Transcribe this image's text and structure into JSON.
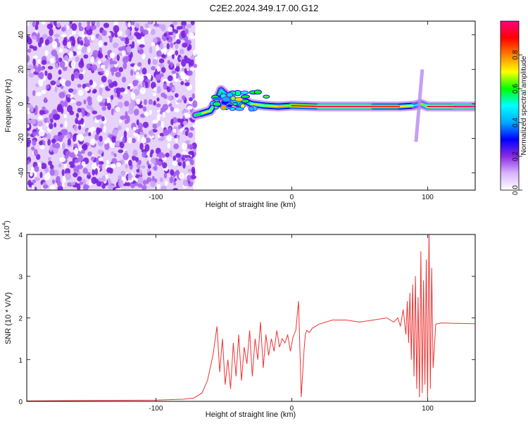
{
  "title": "C2E2.2024.349.17.00.G12",
  "chart_data": [
    {
      "type": "heatmap",
      "xlabel": "Height of straight line (km)",
      "ylabel": "Frequency (Hz)",
      "xlim": [
        -195,
        135
      ],
      "ylim": [
        -50,
        48
      ],
      "xticks": [
        -100,
        0,
        100
      ],
      "yticks": [
        -40,
        -20,
        0,
        20,
        40
      ],
      "colorbar": {
        "label": "Normalized spectral amplitude",
        "range": [
          0,
          1
        ],
        "ticks": [
          "0.0",
          "0.2",
          "0.4",
          "0.6",
          "0.8"
        ],
        "colors": [
          "#ffffff",
          "#d9b3ff",
          "#8a2be2",
          "#0000ff",
          "#00aaff",
          "#00ffff",
          "#00ff00",
          "#ffff00",
          "#ff7f00",
          "#ff0000",
          "#ff007f"
        ]
      },
      "noise_region": {
        "x": [
          -195,
          -71
        ],
        "level": 0.1
      },
      "signal_track": [
        {
          "x": -71,
          "y": -6.5,
          "value": 0.45
        },
        {
          "x": -66,
          "y": -5.5,
          "value": 0.75
        },
        {
          "x": -60,
          "y": -4,
          "value": 0.7
        },
        {
          "x": -55,
          "y": 2,
          "value": 0.6
        },
        {
          "x": -52,
          "y": 8,
          "value": 0.55
        },
        {
          "x": -45,
          "y": 3,
          "value": 0.5
        },
        {
          "x": -40,
          "y": 0,
          "value": 0.6
        },
        {
          "x": -35,
          "y": 2,
          "value": 0.55
        },
        {
          "x": -30,
          "y": 0,
          "value": 0.6
        },
        {
          "x": -20,
          "y": -1,
          "value": 0.75
        },
        {
          "x": -10,
          "y": -1.5,
          "value": 0.7
        },
        {
          "x": 0,
          "y": -1,
          "value": 0.8
        },
        {
          "x": 20,
          "y": -1.5,
          "value": 0.95
        },
        {
          "x": 40,
          "y": -1.5,
          "value": 0.95
        },
        {
          "x": 60,
          "y": -1.5,
          "value": 0.95
        },
        {
          "x": 80,
          "y": -1.5,
          "value": 0.8
        },
        {
          "x": 90,
          "y": -1,
          "value": 0.6
        },
        {
          "x": 95,
          "y": 0,
          "value": 0.4
        },
        {
          "x": 100,
          "y": -1.5,
          "value": 0.9
        },
        {
          "x": 120,
          "y": -1.5,
          "value": 1.0
        },
        {
          "x": 135,
          "y": -1.5,
          "value": 1.0
        }
      ]
    },
    {
      "type": "line",
      "xlabel": "Height of straight line (km)",
      "ylabel": "SNR (10 * V/V)",
      "yscale_label": "(x10",
      "yscale_exp": "4",
      "xlim": [
        -195,
        135
      ],
      "ylim": [
        0,
        4
      ],
      "xticks": [
        -100,
        0,
        100
      ],
      "yticks": [
        0,
        1,
        2,
        3,
        4
      ],
      "color": "#ee3333",
      "series": [
        {
          "x": [
            -195,
            -150,
            -100,
            -80,
            -72,
            -66,
            -62,
            -58,
            -55,
            -53,
            -51,
            -49,
            -47,
            -45,
            -43,
            -41,
            -39,
            -37,
            -35,
            -33,
            -31,
            -29,
            -27,
            -25,
            -23,
            -21,
            -19,
            -17,
            -15,
            -13,
            -11,
            -9,
            -7,
            -5,
            -3,
            -1,
            1,
            3,
            5,
            7,
            9,
            10,
            11,
            13,
            15,
            20,
            25,
            30,
            35,
            40,
            50,
            60,
            70,
            75,
            78,
            80,
            82,
            84,
            85,
            86,
            87,
            88,
            89,
            90,
            91,
            92,
            93,
            94,
            95,
            96,
            97,
            98,
            99,
            100,
            101,
            102,
            103,
            104,
            106,
            110,
            120,
            135
          ],
          "y": [
            0.01,
            0.02,
            0.03,
            0.05,
            0.08,
            0.2,
            0.5,
            1.1,
            1.8,
            0.7,
            1.5,
            0.4,
            1.0,
            0.3,
            1.4,
            0.6,
            1.6,
            0.5,
            1.3,
            0.9,
            1.7,
            0.6,
            1.5,
            1.0,
            1.9,
            0.8,
            1.6,
            1.1,
            1.5,
            1.2,
            1.7,
            1.3,
            1.5,
            1.4,
            1.6,
            1.2,
            1.55,
            1.7,
            2.4,
            0.1,
            1.2,
            1.6,
            1.7,
            1.65,
            1.75,
            1.85,
            1.9,
            1.95,
            1.95,
            1.95,
            1.9,
            1.95,
            2.0,
            1.9,
            2.0,
            1.8,
            2.2,
            1.6,
            2.4,
            1.4,
            2.6,
            1.0,
            2.8,
            0.6,
            3.0,
            0.3,
            2.5,
            0.1,
            3.6,
            0.2,
            2.9,
            0.4,
            3.4,
            0.05,
            4.1,
            0.3,
            3.2,
            0.8,
            1.85,
            1.88,
            1.87,
            1.86
          ]
        }
      ]
    }
  ]
}
